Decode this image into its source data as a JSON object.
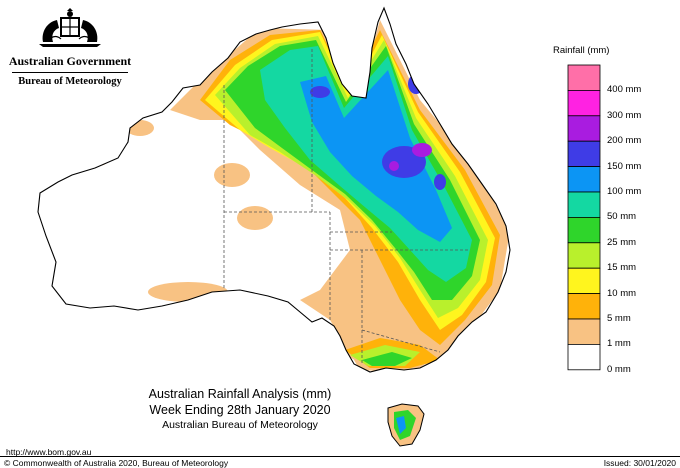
{
  "header": {
    "government": "Australian Government",
    "bureau": "Bureau of Meteorology",
    "logo_icon": "coat-of-arms-icon"
  },
  "title": {
    "line1": "Australian Rainfall Analysis (mm)",
    "line2": "Week Ending 28th January 2020",
    "line3": "Australian Bureau of Meteorology"
  },
  "legend": {
    "title": "Rainfall (mm)",
    "items": [
      {
        "label": "",
        "color": "#ff6fa8"
      },
      {
        "label": "400 mm",
        "color": "#ff22e2"
      },
      {
        "label": "300 mm",
        "color": "#a91ce0"
      },
      {
        "label": "200 mm",
        "color": "#3f3ce6"
      },
      {
        "label": "150 mm",
        "color": "#0c95f4"
      },
      {
        "label": "100 mm",
        "color": "#14d8a2"
      },
      {
        "label": "50 mm",
        "color": "#2fd52b"
      },
      {
        "label": "25 mm",
        "color": "#b9f02c"
      },
      {
        "label": "15 mm",
        "color": "#fff51e"
      },
      {
        "label": "10 mm",
        "color": "#ffb20a"
      },
      {
        "label": "5 mm",
        "color": "#f8c283"
      },
      {
        "label": "1 mm",
        "color": "#ffffff"
      },
      {
        "label": "0 mm",
        "color": ""
      }
    ]
  },
  "footer": {
    "url": "http://www.bom.gov.au",
    "copyright": "© Commonwealth of Australia 2020, Bureau of Meteorology",
    "issued": "Issued: 30/01/2020"
  },
  "colors": {
    "outline": "#000000",
    "state_border": "#555555"
  }
}
